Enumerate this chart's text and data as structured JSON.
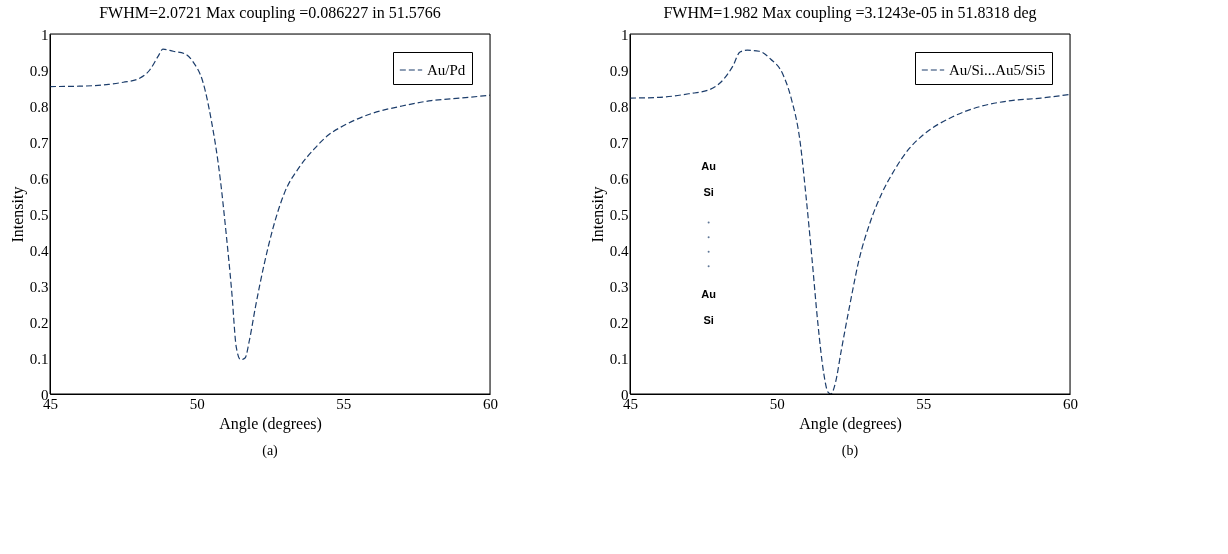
{
  "chart_data": [
    {
      "type": "line",
      "title": "FWHM=2.0721 Max coupling =0.086227 in 51.5766",
      "xlabel": "Angle (degrees)",
      "ylabel": "Intensity",
      "xlim": [
        45,
        60
      ],
      "ylim": [
        0,
        1
      ],
      "xticks": [
        45,
        50,
        55,
        60
      ],
      "yticks": [
        0,
        0.1,
        0.2,
        0.3,
        0.4,
        0.5,
        0.6,
        0.7,
        0.8,
        0.9,
        1
      ],
      "line_style": "dashed",
      "legend": "top right",
      "annotations": [
        "(a)"
      ],
      "x": [
        45,
        46,
        47,
        47.5,
        48,
        48.4,
        48.7,
        48.85,
        49.2,
        49.6,
        49.9,
        50.2,
        50.5,
        50.8,
        51.0,
        51.2,
        51.35,
        51.5,
        51.65,
        51.8,
        52.0,
        52.3,
        52.6,
        53.0,
        53.5,
        54,
        54.5,
        55,
        56,
        57,
        58,
        59,
        60
      ],
      "series": [
        {
          "name": "Au/Pd",
          "color": "#1c3d6b",
          "values": [
            0.854,
            0.855,
            0.86,
            0.866,
            0.875,
            0.9,
            0.94,
            0.958,
            0.952,
            0.945,
            0.92,
            0.87,
            0.76,
            0.6,
            0.45,
            0.28,
            0.13,
            0.095,
            0.1,
            0.15,
            0.24,
            0.36,
            0.46,
            0.56,
            0.63,
            0.68,
            0.72,
            0.745,
            0.78,
            0.8,
            0.815,
            0.822,
            0.83
          ]
        }
      ]
    },
    {
      "type": "line",
      "title": "FWHM=1.982 Max coupling =3.1243e-05 in 51.8318 deg",
      "xlabel": "Angle (degrees)",
      "ylabel": "Intensity",
      "xlim": [
        45,
        60
      ],
      "ylim": [
        0,
        1
      ],
      "xticks": [
        45,
        50,
        55,
        60
      ],
      "yticks": [
        0,
        0.1,
        0.2,
        0.3,
        0.4,
        0.5,
        0.6,
        0.7,
        0.8,
        0.9,
        1
      ],
      "line_style": "dashed",
      "legend": "top right",
      "annotations": [
        "(b)",
        "Au",
        "Si",
        "Au",
        "Si"
      ],
      "x": [
        45,
        46,
        47,
        47.7,
        48.2,
        48.5,
        48.75,
        49.0,
        49.4,
        49.8,
        50.2,
        50.5,
        50.8,
        51.0,
        51.2,
        51.4,
        51.6,
        51.75,
        51.85,
        52.0,
        52.2,
        52.5,
        52.8,
        53.2,
        53.6,
        54,
        54.5,
        55,
        56,
        57,
        58,
        59,
        60
      ],
      "series": [
        {
          "name": "Au/Si...Au5/Si5",
          "color": "#1c3d6b",
          "values": [
            0.822,
            0.824,
            0.834,
            0.845,
            0.875,
            0.91,
            0.95,
            0.955,
            0.952,
            0.93,
            0.89,
            0.82,
            0.7,
            0.55,
            0.38,
            0.2,
            0.06,
            0.005,
            0.0,
            0.03,
            0.12,
            0.25,
            0.37,
            0.48,
            0.56,
            0.62,
            0.68,
            0.72,
            0.77,
            0.8,
            0.815,
            0.822,
            0.832
          ]
        }
      ]
    }
  ]
}
